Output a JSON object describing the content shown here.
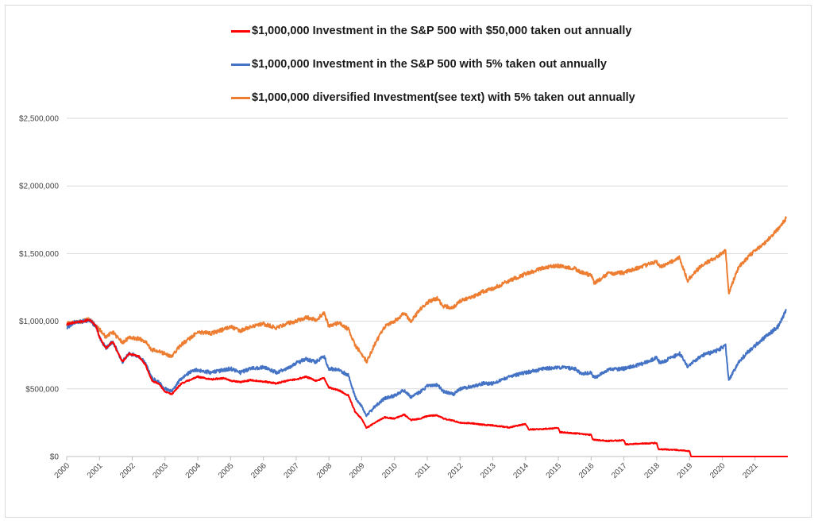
{
  "chart_data": {
    "type": "line",
    "title": "",
    "xlabel": "",
    "ylabel": "",
    "xlim": [
      2000,
      2022
    ],
    "ylim": [
      0,
      2500000
    ],
    "y_ticks": [
      0,
      500000,
      1000000,
      1500000,
      2000000,
      2500000
    ],
    "y_tick_labels": [
      "$0",
      "$500,000",
      "$1,000,000",
      "$1,500,000",
      "$2,000,000",
      "$2,500,000"
    ],
    "x_tick_labels": [
      "2000",
      "2001",
      "2002",
      "2003",
      "2004",
      "2005",
      "2006",
      "2007",
      "2008",
      "2009",
      "2010",
      "2011",
      "2012",
      "2013",
      "2014",
      "2015",
      "2016",
      "2017",
      "2018",
      "2019",
      "2020",
      "2021"
    ],
    "grid": "horizontal",
    "legend_position": "top",
    "series": [
      {
        "name": "$1,000,000 Investment in the S&P 500 with $50,000 taken out annually",
        "color": "#ff0000",
        "points": [
          [
            2000.0,
            975000
          ],
          [
            2000.2,
            990000
          ],
          [
            2000.5,
            1000000
          ],
          [
            2000.7,
            1010000
          ],
          [
            2000.9,
            960000
          ],
          [
            2001.0,
            880000
          ],
          [
            2001.2,
            800000
          ],
          [
            2001.4,
            850000
          ],
          [
            2001.7,
            700000
          ],
          [
            2001.9,
            760000
          ],
          [
            2002.2,
            740000
          ],
          [
            2002.4,
            680000
          ],
          [
            2002.6,
            560000
          ],
          [
            2002.8,
            540000
          ],
          [
            2003.0,
            480000
          ],
          [
            2003.2,
            460000
          ],
          [
            2003.5,
            540000
          ],
          [
            2003.8,
            570000
          ],
          [
            2004.0,
            590000
          ],
          [
            2004.4,
            570000
          ],
          [
            2004.8,
            580000
          ],
          [
            2005.0,
            560000
          ],
          [
            2005.3,
            550000
          ],
          [
            2005.6,
            565000
          ],
          [
            2006.0,
            555000
          ],
          [
            2006.4,
            540000
          ],
          [
            2006.8,
            565000
          ],
          [
            2007.0,
            570000
          ],
          [
            2007.3,
            590000
          ],
          [
            2007.6,
            560000
          ],
          [
            2007.85,
            580000
          ],
          [
            2008.0,
            510000
          ],
          [
            2008.3,
            490000
          ],
          [
            2008.6,
            450000
          ],
          [
            2008.8,
            330000
          ],
          [
            2009.0,
            280000
          ],
          [
            2009.15,
            210000
          ],
          [
            2009.4,
            250000
          ],
          [
            2009.7,
            290000
          ],
          [
            2010.0,
            280000
          ],
          [
            2010.3,
            310000
          ],
          [
            2010.5,
            270000
          ],
          [
            2010.8,
            280000
          ],
          [
            2011.0,
            300000
          ],
          [
            2011.3,
            305000
          ],
          [
            2011.5,
            280000
          ],
          [
            2011.8,
            265000
          ],
          [
            2012.0,
            250000
          ],
          [
            2012.4,
            245000
          ],
          [
            2012.7,
            235000
          ],
          [
            2013.0,
            230000
          ],
          [
            2013.5,
            215000
          ],
          [
            2014.0,
            240000
          ],
          [
            2014.1,
            200000
          ],
          [
            2014.6,
            205000
          ],
          [
            2015.0,
            210000
          ],
          [
            2015.05,
            180000
          ],
          [
            2015.6,
            170000
          ],
          [
            2016.0,
            160000
          ],
          [
            2016.05,
            125000
          ],
          [
            2016.5,
            115000
          ],
          [
            2017.0,
            120000
          ],
          [
            2017.05,
            90000
          ],
          [
            2017.5,
            95000
          ],
          [
            2018.0,
            100000
          ],
          [
            2018.05,
            55000
          ],
          [
            2018.5,
            50000
          ],
          [
            2019.0,
            40000
          ],
          [
            2019.05,
            0
          ],
          [
            2022.0,
            0
          ]
        ]
      },
      {
        "name": "$1,000,000 Investment in the S&P 500 with 5% taken out annually",
        "color": "#4472c4",
        "points": [
          [
            2000.0,
            950000
          ],
          [
            2000.2,
            990000
          ],
          [
            2000.5,
            1000000
          ],
          [
            2000.7,
            1010000
          ],
          [
            2000.9,
            960000
          ],
          [
            2001.0,
            880000
          ],
          [
            2001.2,
            800000
          ],
          [
            2001.4,
            850000
          ],
          [
            2001.7,
            700000
          ],
          [
            2001.9,
            760000
          ],
          [
            2002.2,
            740000
          ],
          [
            2002.4,
            690000
          ],
          [
            2002.6,
            580000
          ],
          [
            2002.8,
            550000
          ],
          [
            2003.0,
            500000
          ],
          [
            2003.2,
            480000
          ],
          [
            2003.5,
            580000
          ],
          [
            2003.8,
            630000
          ],
          [
            2004.0,
            640000
          ],
          [
            2004.4,
            620000
          ],
          [
            2004.8,
            640000
          ],
          [
            2005.0,
            650000
          ],
          [
            2005.3,
            620000
          ],
          [
            2005.6,
            650000
          ],
          [
            2006.0,
            660000
          ],
          [
            2006.4,
            620000
          ],
          [
            2006.8,
            660000
          ],
          [
            2007.0,
            690000
          ],
          [
            2007.3,
            720000
          ],
          [
            2007.6,
            700000
          ],
          [
            2007.85,
            740000
          ],
          [
            2008.0,
            650000
          ],
          [
            2008.3,
            640000
          ],
          [
            2008.6,
            600000
          ],
          [
            2008.8,
            440000
          ],
          [
            2009.0,
            370000
          ],
          [
            2009.15,
            300000
          ],
          [
            2009.4,
            370000
          ],
          [
            2009.7,
            430000
          ],
          [
            2010.0,
            450000
          ],
          [
            2010.3,
            490000
          ],
          [
            2010.5,
            440000
          ],
          [
            2010.8,
            480000
          ],
          [
            2011.0,
            520000
          ],
          [
            2011.3,
            530000
          ],
          [
            2011.5,
            480000
          ],
          [
            2011.8,
            460000
          ],
          [
            2012.0,
            500000
          ],
          [
            2012.4,
            520000
          ],
          [
            2012.7,
            540000
          ],
          [
            2013.0,
            540000
          ],
          [
            2013.5,
            590000
          ],
          [
            2014.0,
            620000
          ],
          [
            2014.6,
            650000
          ],
          [
            2015.0,
            660000
          ],
          [
            2015.5,
            650000
          ],
          [
            2015.7,
            610000
          ],
          [
            2016.0,
            620000
          ],
          [
            2016.1,
            580000
          ],
          [
            2016.5,
            640000
          ],
          [
            2017.0,
            650000
          ],
          [
            2017.5,
            680000
          ],
          [
            2018.0,
            730000
          ],
          [
            2018.1,
            690000
          ],
          [
            2018.7,
            760000
          ],
          [
            2018.95,
            660000
          ],
          [
            2019.0,
            680000
          ],
          [
            2019.4,
            750000
          ],
          [
            2019.8,
            780000
          ],
          [
            2020.1,
            820000
          ],
          [
            2020.2,
            560000
          ],
          [
            2020.5,
            700000
          ],
          [
            2020.9,
            800000
          ],
          [
            2021.3,
            880000
          ],
          [
            2021.7,
            960000
          ],
          [
            2021.95,
            1080000
          ]
        ]
      },
      {
        "name": "$1,000,000 diversified Investment(see text) with 5% taken out annually",
        "color": "#ed7d31",
        "points": [
          [
            2000.0,
            980000
          ],
          [
            2000.2,
            990000
          ],
          [
            2000.5,
            1000000
          ],
          [
            2000.7,
            1020000
          ],
          [
            2000.9,
            960000
          ],
          [
            2001.0,
            940000
          ],
          [
            2001.2,
            880000
          ],
          [
            2001.4,
            920000
          ],
          [
            2001.7,
            840000
          ],
          [
            2001.9,
            880000
          ],
          [
            2002.2,
            870000
          ],
          [
            2002.4,
            850000
          ],
          [
            2002.6,
            790000
          ],
          [
            2002.8,
            780000
          ],
          [
            2003.0,
            760000
          ],
          [
            2003.2,
            740000
          ],
          [
            2003.5,
            830000
          ],
          [
            2003.8,
            880000
          ],
          [
            2004.0,
            920000
          ],
          [
            2004.4,
            910000
          ],
          [
            2004.8,
            940000
          ],
          [
            2005.0,
            960000
          ],
          [
            2005.3,
            930000
          ],
          [
            2005.6,
            960000
          ],
          [
            2006.0,
            980000
          ],
          [
            2006.4,
            950000
          ],
          [
            2006.8,
            990000
          ],
          [
            2007.0,
            1000000
          ],
          [
            2007.3,
            1030000
          ],
          [
            2007.6,
            1010000
          ],
          [
            2007.85,
            1060000
          ],
          [
            2008.0,
            960000
          ],
          [
            2008.3,
            990000
          ],
          [
            2008.6,
            940000
          ],
          [
            2008.8,
            820000
          ],
          [
            2009.0,
            760000
          ],
          [
            2009.15,
            700000
          ],
          [
            2009.4,
            830000
          ],
          [
            2009.7,
            960000
          ],
          [
            2010.0,
            1000000
          ],
          [
            2010.3,
            1060000
          ],
          [
            2010.5,
            1000000
          ],
          [
            2010.8,
            1090000
          ],
          [
            2011.0,
            1140000
          ],
          [
            2011.3,
            1170000
          ],
          [
            2011.5,
            1110000
          ],
          [
            2011.8,
            1100000
          ],
          [
            2012.0,
            1150000
          ],
          [
            2012.4,
            1180000
          ],
          [
            2012.7,
            1220000
          ],
          [
            2013.0,
            1240000
          ],
          [
            2013.5,
            1300000
          ],
          [
            2014.0,
            1350000
          ],
          [
            2014.6,
            1400000
          ],
          [
            2015.0,
            1410000
          ],
          [
            2015.5,
            1390000
          ],
          [
            2015.7,
            1360000
          ],
          [
            2016.0,
            1340000
          ],
          [
            2016.1,
            1280000
          ],
          [
            2016.5,
            1350000
          ],
          [
            2017.0,
            1360000
          ],
          [
            2017.5,
            1400000
          ],
          [
            2018.0,
            1440000
          ],
          [
            2018.1,
            1400000
          ],
          [
            2018.7,
            1470000
          ],
          [
            2018.95,
            1290000
          ],
          [
            2019.0,
            1320000
          ],
          [
            2019.4,
            1420000
          ],
          [
            2019.8,
            1470000
          ],
          [
            2020.1,
            1520000
          ],
          [
            2020.2,
            1210000
          ],
          [
            2020.5,
            1400000
          ],
          [
            2020.9,
            1500000
          ],
          [
            2021.3,
            1580000
          ],
          [
            2021.7,
            1680000
          ],
          [
            2021.95,
            1760000
          ]
        ]
      }
    ]
  }
}
